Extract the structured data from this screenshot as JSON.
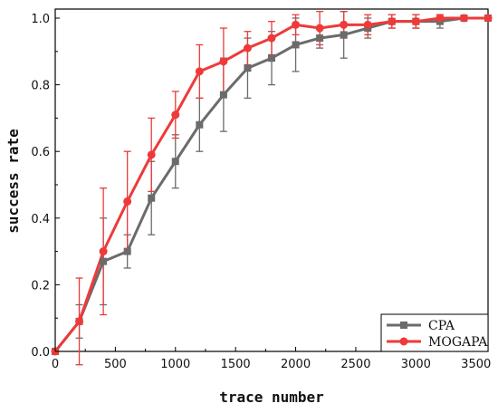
{
  "chart_data": {
    "type": "line",
    "xlabel": "trace number",
    "ylabel": "success rate",
    "xlim": [
      0,
      3600
    ],
    "ylim": [
      0,
      1.0
    ],
    "xticks": [
      0,
      500,
      1000,
      1500,
      2000,
      2500,
      3000,
      3500
    ],
    "yticks": [
      0.0,
      0.2,
      0.4,
      0.6,
      0.8,
      1.0
    ],
    "xtick_labels": [
      "0",
      "500",
      "1000",
      "1500",
      "2000",
      "2500",
      "3000",
      "3500"
    ],
    "ytick_labels": [
      "0.0",
      "0.2",
      "0.4",
      "0.6",
      "0.8",
      "1.0"
    ],
    "grid": false,
    "legend_position": "bottom-right",
    "x": [
      0,
      200,
      400,
      600,
      800,
      1000,
      1200,
      1400,
      1600,
      1800,
      2000,
      2200,
      2400,
      2600,
      2800,
      3000,
      3200,
      3400,
      3600
    ],
    "series": [
      {
        "name": "CPA",
        "color": "#6b6b6b",
        "marker": "square",
        "values": [
          0.0,
          0.09,
          0.27,
          0.3,
          0.46,
          0.57,
          0.68,
          0.77,
          0.85,
          0.88,
          0.92,
          0.94,
          0.95,
          0.97,
          0.99,
          0.99,
          0.99,
          1.0,
          1.0
        ],
        "errors": [
          0.0,
          0.05,
          0.13,
          0.05,
          0.11,
          0.08,
          0.08,
          0.11,
          0.09,
          0.08,
          0.08,
          0.03,
          0.07,
          0.03,
          0.02,
          0.02,
          0.02,
          0.0,
          0.0
        ]
      },
      {
        "name": "MOGAPA",
        "color": "#ee3a3a",
        "marker": "circle",
        "values": [
          0.0,
          0.09,
          0.3,
          0.45,
          0.59,
          0.71,
          0.84,
          0.87,
          0.91,
          0.94,
          0.98,
          0.97,
          0.98,
          0.98,
          0.99,
          0.99,
          1.0,
          1.0,
          1.0
        ],
        "errors": [
          0.0,
          0.13,
          0.19,
          0.15,
          0.11,
          0.07,
          0.08,
          0.1,
          0.05,
          0.05,
          0.03,
          0.05,
          0.04,
          0.03,
          0.02,
          0.02,
          0.01,
          0.0,
          0.0
        ]
      }
    ]
  }
}
